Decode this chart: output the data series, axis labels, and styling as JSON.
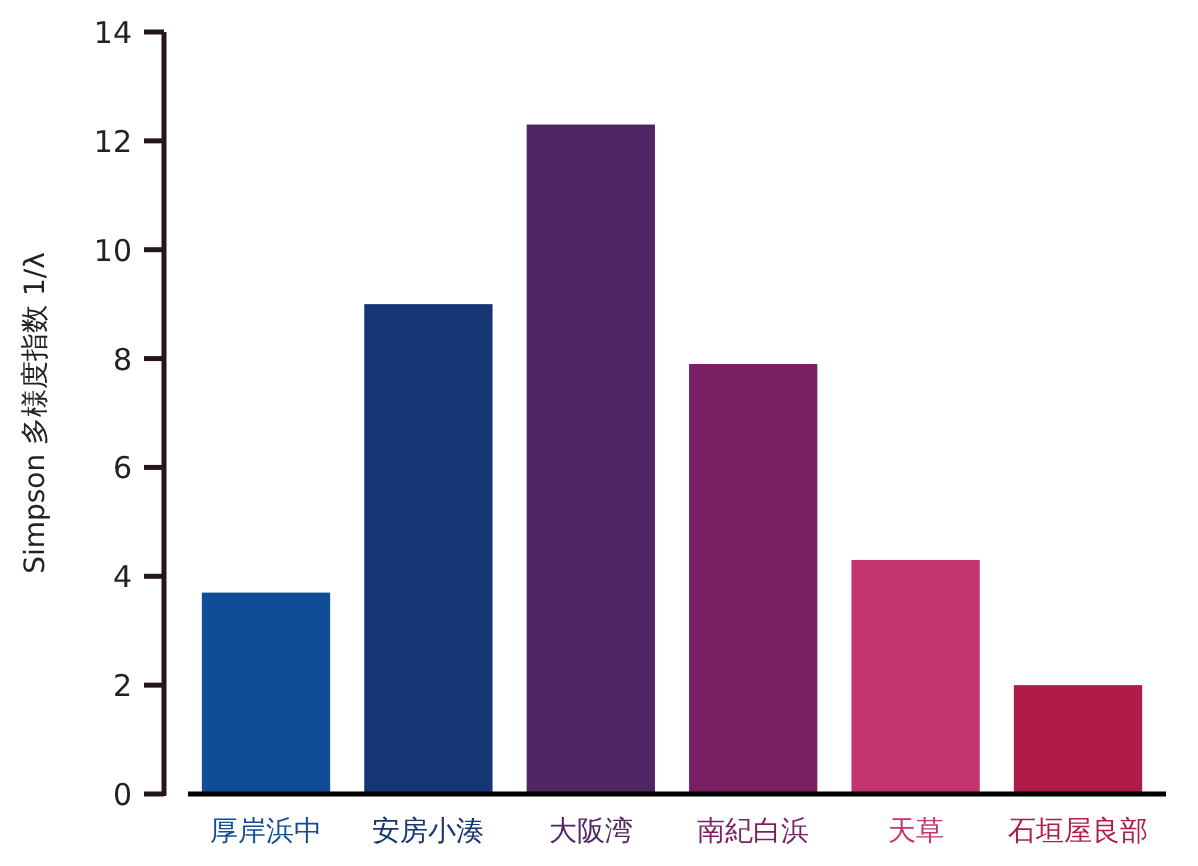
{
  "chart_data": {
    "type": "bar",
    "categories": [
      "厚岸浜中",
      "安房小湊",
      "大阪湾",
      "南紀白浜",
      "天草",
      "石垣屋良部"
    ],
    "values": [
      3.7,
      9.0,
      12.3,
      7.9,
      4.3,
      2.0
    ],
    "colors": [
      "#114c96",
      "#163574",
      "#4f2562",
      "#7b1f65",
      "#c3356f",
      "#b01c48"
    ],
    "ylabel": "Simpson 多様度指数 1/λ",
    "ylim": [
      0,
      14
    ],
    "yticks": [
      0,
      2,
      4,
      6,
      8,
      10,
      12,
      14
    ]
  }
}
